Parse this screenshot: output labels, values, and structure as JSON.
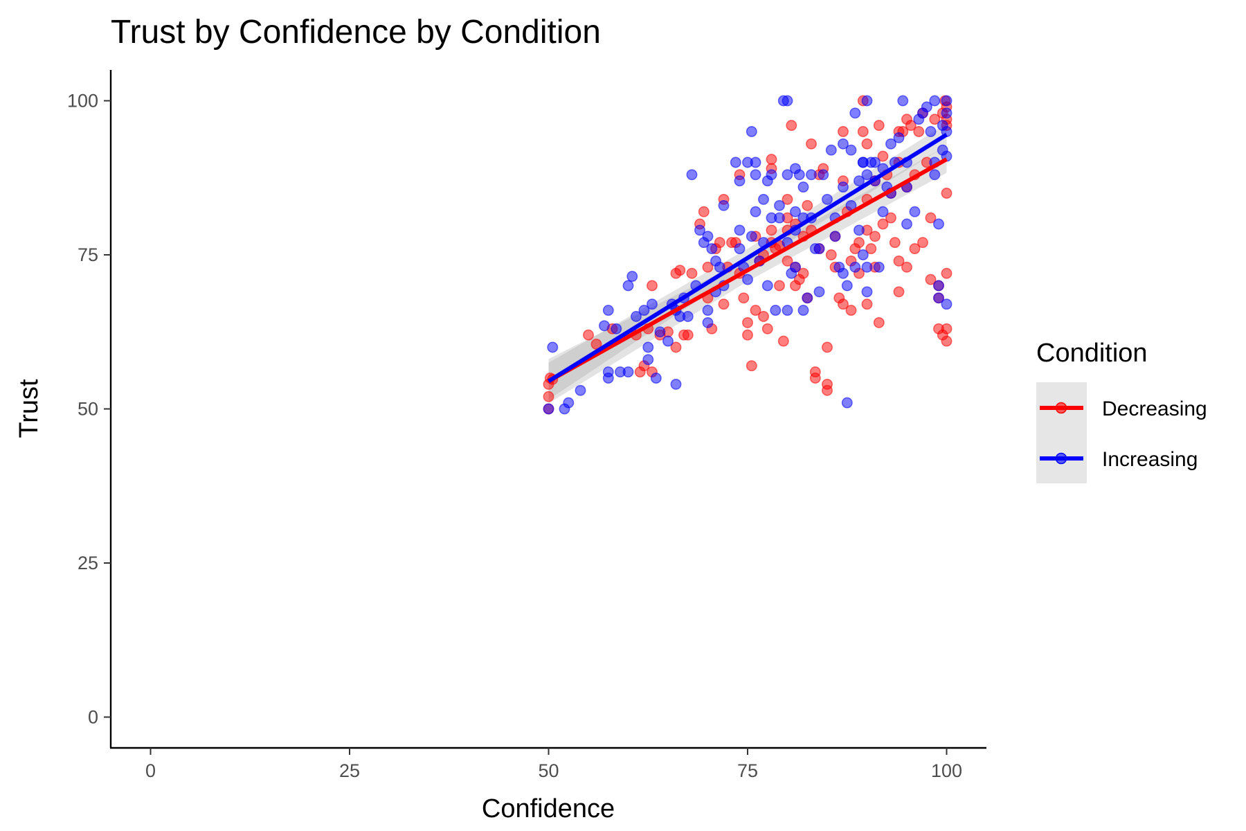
{
  "chart_data": {
    "type": "scatter",
    "title": "Trust by Confidence by Condition",
    "xlabel": "Confidence",
    "ylabel": "Trust",
    "xlim": [
      -5,
      105
    ],
    "ylim": [
      -5,
      105
    ],
    "xticks": [
      0,
      25,
      50,
      75,
      100
    ],
    "yticks": [
      0,
      25,
      50,
      75,
      100
    ],
    "grid": false,
    "legend": {
      "title": "Condition",
      "placement": "right"
    },
    "series": [
      {
        "name": "Decreasing",
        "color": "#ff0000",
        "trend": {
          "x": [
            50,
            100
          ],
          "y": [
            54.5,
            90.5
          ]
        },
        "ci_halfwidth": [
          3.6,
          1.8,
          2.2
        ],
        "points": [
          [
            50,
            50
          ],
          [
            50,
            52
          ],
          [
            50,
            54
          ],
          [
            50.2,
            55
          ],
          [
            50.5,
            54.8
          ],
          [
            55,
            62
          ],
          [
            56,
            60.5
          ],
          [
            58,
            63
          ],
          [
            61,
            62
          ],
          [
            61.5,
            56
          ],
          [
            62,
            57
          ],
          [
            62.5,
            63
          ],
          [
            63,
            56
          ],
          [
            63,
            70
          ],
          [
            64,
            62
          ],
          [
            65,
            62.5
          ],
          [
            66,
            72
          ],
          [
            66.5,
            72.5
          ],
          [
            67,
            62
          ],
          [
            66,
            60
          ],
          [
            67.5,
            62
          ],
          [
            68,
            72
          ],
          [
            69,
            80
          ],
          [
            69.5,
            82
          ],
          [
            70,
            73
          ],
          [
            70,
            68
          ],
          [
            70.5,
            63
          ],
          [
            71,
            76
          ],
          [
            71.5,
            77
          ],
          [
            72,
            84
          ],
          [
            72,
            67
          ],
          [
            72.5,
            73
          ],
          [
            73,
            77
          ],
          [
            73.5,
            77
          ],
          [
            74,
            88
          ],
          [
            74,
            72
          ],
          [
            74.5,
            68
          ],
          [
            75,
            64
          ],
          [
            75,
            62
          ],
          [
            75.5,
            57
          ],
          [
            76,
            78
          ],
          [
            76.5,
            74
          ],
          [
            76,
            66
          ],
          [
            77,
            75
          ],
          [
            77,
            65
          ],
          [
            77.5,
            63
          ],
          [
            78,
            90.5
          ],
          [
            78,
            89
          ],
          [
            78,
            79
          ],
          [
            78,
            77
          ],
          [
            78.5,
            76
          ],
          [
            79,
            76.5
          ],
          [
            79,
            70
          ],
          [
            79.5,
            61
          ],
          [
            80,
            84
          ],
          [
            80,
            81
          ],
          [
            80,
            79
          ],
          [
            80,
            74
          ],
          [
            80.5,
            96
          ],
          [
            81,
            80
          ],
          [
            81,
            73
          ],
          [
            81,
            70
          ],
          [
            81.5,
            71
          ],
          [
            82,
            78
          ],
          [
            82,
            72
          ],
          [
            82.5,
            68
          ],
          [
            82.5,
            83
          ],
          [
            83,
            93
          ],
          [
            83,
            79
          ],
          [
            83.5,
            56
          ],
          [
            83.5,
            55
          ],
          [
            84,
            76
          ],
          [
            84,
            88
          ],
          [
            84.5,
            89
          ],
          [
            85,
            54
          ],
          [
            85,
            53
          ],
          [
            85,
            60
          ],
          [
            85.5,
            75
          ],
          [
            86,
            73
          ],
          [
            86,
            78
          ],
          [
            86.5,
            68
          ],
          [
            87,
            95
          ],
          [
            87,
            87
          ],
          [
            87,
            67
          ],
          [
            87.5,
            82
          ],
          [
            88,
            74
          ],
          [
            88,
            66
          ],
          [
            88.5,
            76
          ],
          [
            89,
            77
          ],
          [
            89,
            72
          ],
          [
            89.5,
            100
          ],
          [
            89.5,
            95
          ],
          [
            90,
            93
          ],
          [
            90,
            84
          ],
          [
            90,
            79
          ],
          [
            90,
            67
          ],
          [
            90.5,
            76
          ],
          [
            91,
            87
          ],
          [
            91,
            78
          ],
          [
            91,
            73
          ],
          [
            91.5,
            64
          ],
          [
            91.5,
            96
          ],
          [
            92,
            91
          ],
          [
            92,
            80
          ],
          [
            92.5,
            88
          ],
          [
            93,
            81
          ],
          [
            93.5,
            77
          ],
          [
            93,
            85
          ],
          [
            94,
            95
          ],
          [
            94,
            90
          ],
          [
            94,
            74
          ],
          [
            94,
            69
          ],
          [
            94.5,
            95
          ],
          [
            95,
            97
          ],
          [
            95,
            86
          ],
          [
            95,
            73
          ],
          [
            95.5,
            96
          ],
          [
            96,
            88
          ],
          [
            96,
            76
          ],
          [
            96.5,
            95
          ],
          [
            97,
            77
          ],
          [
            97,
            98
          ],
          [
            97.5,
            90
          ],
          [
            98,
            81
          ],
          [
            98,
            71
          ],
          [
            98.5,
            97
          ],
          [
            99,
            70
          ],
          [
            99,
            63
          ],
          [
            99,
            68
          ],
          [
            99.5,
            98
          ],
          [
            99.5,
            62
          ],
          [
            99.8,
            100
          ],
          [
            100,
            99
          ],
          [
            100,
            97
          ],
          [
            100,
            96
          ],
          [
            100,
            85
          ],
          [
            100,
            72
          ],
          [
            100,
            63
          ],
          [
            100,
            61
          ]
        ]
      },
      {
        "name": "Increasing",
        "color": "#0000ff",
        "trend": {
          "x": [
            50,
            100
          ],
          "y": [
            54.5,
            94.5
          ]
        },
        "ci_halfwidth": [
          3.0,
          1.5,
          1.8
        ],
        "points": [
          [
            50,
            50
          ],
          [
            50.5,
            60
          ],
          [
            52,
            50
          ],
          [
            52.5,
            51
          ],
          [
            54,
            53
          ],
          [
            57,
            63.5
          ],
          [
            57.5,
            66
          ],
          [
            57.5,
            56
          ],
          [
            57.5,
            55
          ],
          [
            58.5,
            63
          ],
          [
            59,
            56
          ],
          [
            60,
            56
          ],
          [
            60,
            70
          ],
          [
            60.5,
            71.5
          ],
          [
            61,
            65
          ],
          [
            62,
            66
          ],
          [
            62.5,
            60
          ],
          [
            62.5,
            58
          ],
          [
            63,
            67
          ],
          [
            63.5,
            55
          ],
          [
            64,
            62.5
          ],
          [
            65,
            61
          ],
          [
            65.5,
            67
          ],
          [
            66,
            66
          ],
          [
            66,
            54
          ],
          [
            66.5,
            65
          ],
          [
            67,
            68
          ],
          [
            67.5,
            65
          ],
          [
            68,
            88
          ],
          [
            68.5,
            70
          ],
          [
            69,
            79
          ],
          [
            69.5,
            77
          ],
          [
            70,
            66
          ],
          [
            70,
            78
          ],
          [
            70,
            64
          ],
          [
            70.5,
            76
          ],
          [
            71,
            74
          ],
          [
            71,
            69
          ],
          [
            71.5,
            73
          ],
          [
            72,
            70
          ],
          [
            72,
            83
          ],
          [
            73.5,
            90
          ],
          [
            74,
            87
          ],
          [
            74,
            79
          ],
          [
            74,
            76
          ],
          [
            74.5,
            73
          ],
          [
            75,
            90
          ],
          [
            75,
            71
          ],
          [
            75.5,
            95
          ],
          [
            75.5,
            78
          ],
          [
            76,
            90
          ],
          [
            76,
            88
          ],
          [
            76,
            82
          ],
          [
            76.5,
            74
          ],
          [
            77,
            84
          ],
          [
            77,
            77
          ],
          [
            77.5,
            87
          ],
          [
            77.5,
            70
          ],
          [
            78,
            88
          ],
          [
            78,
            81
          ],
          [
            78.5,
            66
          ],
          [
            79,
            83
          ],
          [
            79,
            81
          ],
          [
            79.5,
            100
          ],
          [
            80,
            100
          ],
          [
            80,
            88
          ],
          [
            80,
            77
          ],
          [
            80,
            66
          ],
          [
            80.5,
            72
          ],
          [
            81,
            89
          ],
          [
            81,
            82
          ],
          [
            81,
            79
          ],
          [
            81,
            73
          ],
          [
            81.5,
            88
          ],
          [
            82,
            86
          ],
          [
            82,
            81
          ],
          [
            82,
            66
          ],
          [
            82.5,
            68
          ],
          [
            83,
            88
          ],
          [
            83,
            81
          ],
          [
            83.5,
            76
          ],
          [
            84,
            76
          ],
          [
            84,
            69
          ],
          [
            84.5,
            88
          ],
          [
            85,
            84
          ],
          [
            85.5,
            92
          ],
          [
            86,
            81
          ],
          [
            86,
            78
          ],
          [
            86.5,
            73
          ],
          [
            87,
            93
          ],
          [
            87,
            86
          ],
          [
            87,
            72
          ],
          [
            87.5,
            70
          ],
          [
            87.5,
            51
          ],
          [
            88,
            92
          ],
          [
            88,
            83
          ],
          [
            88.5,
            73
          ],
          [
            88.5,
            98
          ],
          [
            89,
            87
          ],
          [
            89,
            79
          ],
          [
            89.5,
            90
          ],
          [
            89.5,
            90
          ],
          [
            89.5,
            75
          ],
          [
            90,
            100
          ],
          [
            90,
            88
          ],
          [
            90,
            73
          ],
          [
            90,
            69
          ],
          [
            90.5,
            90
          ],
          [
            91,
            87
          ],
          [
            91,
            90
          ],
          [
            91.5,
            73
          ],
          [
            92,
            89
          ],
          [
            92,
            82
          ],
          [
            92.5,
            86
          ],
          [
            93,
            93
          ],
          [
            93,
            85
          ],
          [
            93.5,
            90
          ],
          [
            94,
            94
          ],
          [
            94.5,
            100
          ],
          [
            95,
            90
          ],
          [
            95,
            86
          ],
          [
            95,
            80
          ],
          [
            96,
            82
          ],
          [
            96.5,
            97
          ],
          [
            97,
            98
          ],
          [
            97.5,
            99
          ],
          [
            98,
            95
          ],
          [
            98.5,
            100
          ],
          [
            98.5,
            90
          ],
          [
            98.5,
            88
          ],
          [
            99,
            80
          ],
          [
            99,
            68
          ],
          [
            99,
            70
          ],
          [
            99.5,
            96
          ],
          [
            99.5,
            92
          ],
          [
            100,
            100
          ],
          [
            100,
            98
          ],
          [
            100,
            95
          ],
          [
            100,
            91
          ],
          [
            100,
            67
          ]
        ]
      }
    ]
  }
}
